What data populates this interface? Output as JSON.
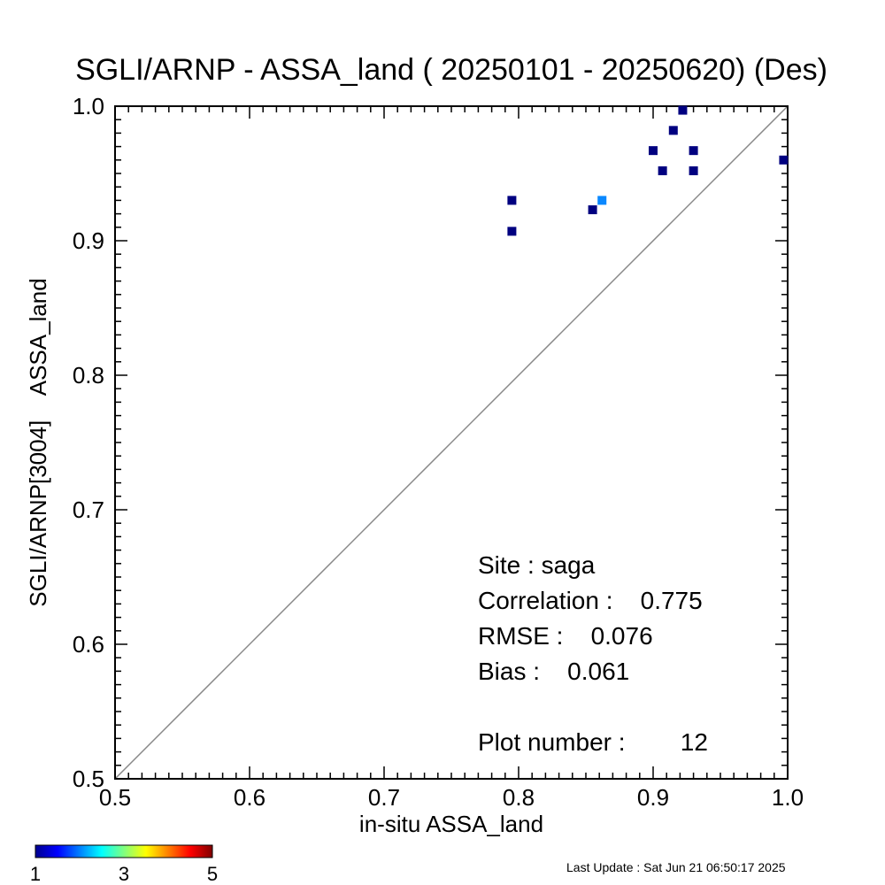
{
  "chart_data": {
    "type": "scatter",
    "title": "SGLI/ARNP - ASSA_land ( 20250101 - 20250620) (Des)",
    "xlabel": "in-situ ASSA_land",
    "ylabel": "SGLI/ARNP[3004]    ASSA_land",
    "xlim": [
      0.5,
      1.0
    ],
    "ylim": [
      0.5,
      1.0
    ],
    "x_ticks": [
      "0.5",
      "0.6",
      "0.7",
      "0.8",
      "0.9",
      "1.0"
    ],
    "y_ticks": [
      "0.5",
      "0.6",
      "0.7",
      "0.8",
      "0.9",
      "1.0"
    ],
    "reference_line": "1:1",
    "grid": false,
    "points": [
      {
        "x": 0.795,
        "y": 0.93,
        "count": 1
      },
      {
        "x": 0.795,
        "y": 0.907,
        "count": 1
      },
      {
        "x": 0.855,
        "y": 0.923,
        "count": 1
      },
      {
        "x": 0.862,
        "y": 0.93,
        "count": 2
      },
      {
        "x": 0.9,
        "y": 0.967,
        "count": 1
      },
      {
        "x": 0.907,
        "y": 0.952,
        "count": 1
      },
      {
        "x": 0.915,
        "y": 0.982,
        "count": 1
      },
      {
        "x": 0.922,
        "y": 0.997,
        "count": 1
      },
      {
        "x": 0.93,
        "y": 0.967,
        "count": 1
      },
      {
        "x": 0.93,
        "y": 0.952,
        "count": 1
      },
      {
        "x": 0.997,
        "y": 0.96,
        "count": 1
      }
    ],
    "stats": {
      "site": "Site : saga",
      "correlation": "Correlation :    0.775",
      "rmse": "RMSE :    0.076",
      "bias": "Bias :    0.061",
      "plot_number": "Plot number :        12"
    },
    "colorbar": {
      "range": [
        1,
        5
      ],
      "ticks": [
        "1",
        "3",
        "5"
      ],
      "colormap": "jet"
    },
    "colors": {
      "count_1": "#000080",
      "count_2": "#0a88ff",
      "one_to_one_line": "#888888"
    }
  },
  "footer": {
    "last_update": "Last Update : Sat Jun 21 06:50:17 2025"
  }
}
